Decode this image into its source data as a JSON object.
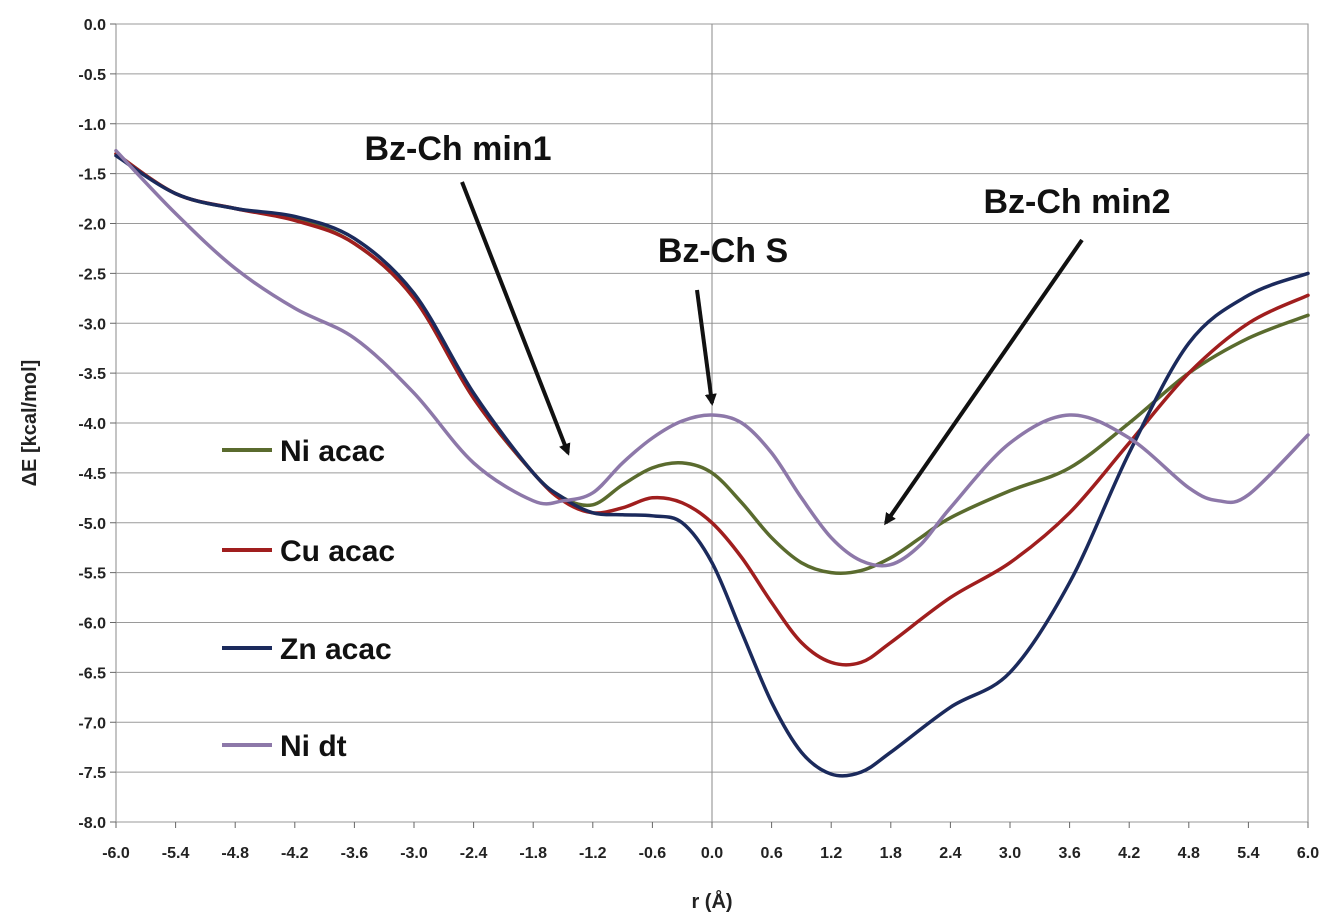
{
  "chart_data": {
    "type": "line",
    "title": "",
    "xlabel": "r (Å)",
    "ylabel": "ΔE [kcal/mol]",
    "xlim": [
      -6.0,
      6.0
    ],
    "ylim": [
      -8.0,
      0.0
    ],
    "x_ticks": [
      "-6.0",
      "-5.4",
      "-4.8",
      "-4.2",
      "-3.6",
      "-3.0",
      "-2.4",
      "-1.8",
      "-1.2",
      "-0.6",
      "0.0",
      "0.6",
      "1.2",
      "1.8",
      "2.4",
      "3.0",
      "3.6",
      "4.2",
      "4.8",
      "5.4",
      "6.0"
    ],
    "y_ticks": [
      "0.0",
      "-0.5",
      "-1.0",
      "-1.5",
      "-2.0",
      "-2.5",
      "-3.0",
      "-3.5",
      "-4.0",
      "-4.5",
      "-5.0",
      "-5.5",
      "-6.0",
      "-6.5",
      "-7.0",
      "-7.5",
      "-8.0"
    ],
    "grid": "horizontal",
    "legend_position": "left",
    "series": [
      {
        "name": "Ni acac",
        "color": "#5a6b2e",
        "x": [
          -6.0,
          -5.4,
          -4.8,
          -4.2,
          -3.6,
          -3.0,
          -2.4,
          -1.8,
          -1.5,
          -1.2,
          -0.9,
          -0.6,
          -0.3,
          0.0,
          0.3,
          0.6,
          0.9,
          1.2,
          1.5,
          1.8,
          2.1,
          2.4,
          3.0,
          3.6,
          4.2,
          4.8,
          5.4,
          6.0
        ],
        "y": [
          -1.3,
          -1.7,
          -1.85,
          -1.95,
          -2.2,
          -2.75,
          -3.75,
          -4.5,
          -4.75,
          -4.82,
          -4.62,
          -4.45,
          -4.4,
          -4.5,
          -4.8,
          -5.15,
          -5.4,
          -5.5,
          -5.48,
          -5.35,
          -5.15,
          -4.95,
          -4.68,
          -4.45,
          -4.0,
          -3.5,
          -3.15,
          -2.92
        ]
      },
      {
        "name": "Cu acac",
        "color": "#a01e1e",
        "x": [
          -6.0,
          -5.4,
          -4.8,
          -4.2,
          -3.6,
          -3.0,
          -2.4,
          -1.8,
          -1.5,
          -1.2,
          -0.9,
          -0.6,
          -0.3,
          0.0,
          0.3,
          0.6,
          0.9,
          1.2,
          1.5,
          1.8,
          2.4,
          3.0,
          3.6,
          4.2,
          4.8,
          5.4,
          6.0
        ],
        "y": [
          -1.3,
          -1.7,
          -1.85,
          -1.97,
          -2.2,
          -2.75,
          -3.75,
          -4.5,
          -4.78,
          -4.9,
          -4.85,
          -4.75,
          -4.8,
          -5.0,
          -5.35,
          -5.8,
          -6.2,
          -6.4,
          -6.4,
          -6.2,
          -5.75,
          -5.4,
          -4.9,
          -4.2,
          -3.5,
          -3.0,
          -2.72
        ]
      },
      {
        "name": "Zn acac",
        "color": "#1b2a5c",
        "x": [
          -6.0,
          -5.4,
          -4.8,
          -4.2,
          -3.6,
          -3.0,
          -2.4,
          -1.8,
          -1.5,
          -1.2,
          -0.9,
          -0.6,
          -0.3,
          0.0,
          0.3,
          0.6,
          0.9,
          1.2,
          1.5,
          1.8,
          2.4,
          3.0,
          3.6,
          4.2,
          4.8,
          5.4,
          6.0
        ],
        "y": [
          -1.32,
          -1.7,
          -1.85,
          -1.93,
          -2.15,
          -2.7,
          -3.7,
          -4.5,
          -4.75,
          -4.9,
          -4.92,
          -4.93,
          -5.0,
          -5.4,
          -6.1,
          -6.8,
          -7.3,
          -7.52,
          -7.5,
          -7.3,
          -6.85,
          -6.5,
          -5.6,
          -4.3,
          -3.2,
          -2.72,
          -2.5
        ]
      },
      {
        "name": "Ni dt",
        "color": "#8d78a9",
        "x": [
          -6.0,
          -5.4,
          -4.8,
          -4.2,
          -3.6,
          -3.0,
          -2.4,
          -1.8,
          -1.5,
          -1.2,
          -0.9,
          -0.6,
          -0.3,
          0.0,
          0.3,
          0.6,
          0.9,
          1.2,
          1.5,
          1.8,
          2.1,
          2.4,
          3.0,
          3.6,
          4.2,
          4.8,
          5.1,
          5.4,
          6.0
        ],
        "y": [
          -1.27,
          -1.9,
          -2.45,
          -2.85,
          -3.15,
          -3.7,
          -4.4,
          -4.78,
          -4.78,
          -4.7,
          -4.4,
          -4.15,
          -3.98,
          -3.92,
          -4.0,
          -4.3,
          -4.75,
          -5.15,
          -5.38,
          -5.42,
          -5.22,
          -4.85,
          -4.2,
          -3.92,
          -4.15,
          -4.65,
          -4.78,
          -4.72,
          -4.12
        ]
      }
    ],
    "annotations": [
      {
        "text": "Bz-Ch min1",
        "x": -1.45,
        "y": -4.3
      },
      {
        "text": "Bz-Ch S",
        "x": 0.0,
        "y": -3.8
      },
      {
        "text": "Bz-Ch min2",
        "x": 1.75,
        "y": -5.0
      }
    ]
  }
}
